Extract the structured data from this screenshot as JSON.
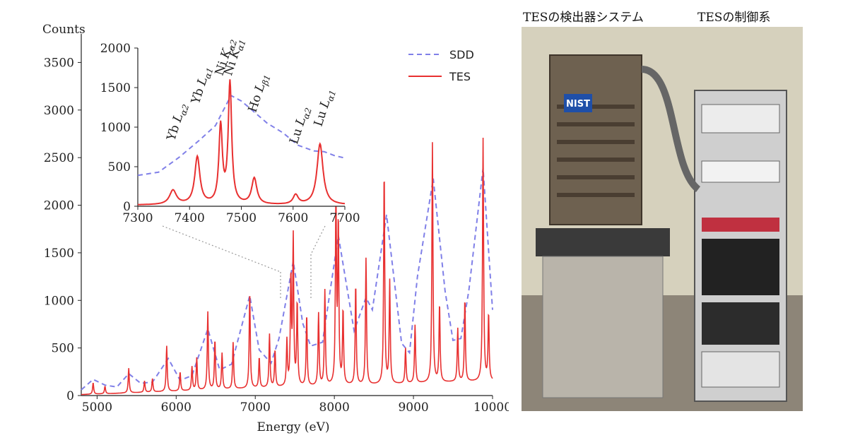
{
  "chart_data": [
    {
      "type": "line",
      "ylabel": "Counts",
      "xlabel": "Energy (eV)",
      "xlim": [
        4800,
        10000
      ],
      "ylim": [
        0,
        3800
      ],
      "x_ticks": [
        5000,
        6000,
        7000,
        8000,
        9000,
        10000
      ],
      "y_ticks": [
        0,
        500,
        1000,
        1500,
        2000,
        2500,
        3000,
        3500
      ],
      "legend_position": "top-right",
      "series": [
        {
          "name": "SDD",
          "style": "dashed",
          "color": "#8080e8",
          "points": [
            [
              4800,
              60
            ],
            [
              4950,
              170
            ],
            [
              5100,
              110
            ],
            [
              5250,
              90
            ],
            [
              5400,
              230
            ],
            [
              5550,
              130
            ],
            [
              5700,
              140
            ],
            [
              5900,
              390
            ],
            [
              6050,
              160
            ],
            [
              6200,
              210
            ],
            [
              6400,
              700
            ],
            [
              6550,
              270
            ],
            [
              6700,
              330
            ],
            [
              6930,
              1050
            ],
            [
              7050,
              480
            ],
            [
              7200,
              340
            ],
            [
              7300,
              600
            ],
            [
              7480,
              1410
            ],
            [
              7600,
              760
            ],
            [
              7700,
              520
            ],
            [
              7850,
              560
            ],
            [
              8050,
              1680
            ],
            [
              8250,
              680
            ],
            [
              8400,
              1030
            ],
            [
              8480,
              900
            ],
            [
              8660,
              1900
            ],
            [
              8850,
              550
            ],
            [
              8950,
              450
            ],
            [
              9050,
              1250
            ],
            [
              9250,
              2280
            ],
            [
              9400,
              1100
            ],
            [
              9500,
              580
            ],
            [
              9600,
              600
            ],
            [
              9700,
              1100
            ],
            [
              9880,
              2390
            ],
            [
              10000,
              900
            ]
          ]
        },
        {
          "name": "TES",
          "style": "solid",
          "color": "#e83030",
          "baseline": [
            [
              4800,
              10
            ],
            [
              5500,
              30
            ],
            [
              6500,
              60
            ],
            [
              7500,
              90
            ],
            [
              8500,
              110
            ],
            [
              9500,
              140
            ],
            [
              10000,
              150
            ]
          ],
          "peaks": [
            [
              4950,
              120
            ],
            [
              5100,
              80
            ],
            [
              5400,
              260
            ],
            [
              5600,
              120
            ],
            [
              5700,
              140
            ],
            [
              5880,
              480
            ],
            [
              6050,
              200
            ],
            [
              6200,
              250
            ],
            [
              6260,
              340
            ],
            [
              6400,
              820
            ],
            [
              6490,
              520
            ],
            [
              6580,
              380
            ],
            [
              6720,
              490
            ],
            [
              6930,
              1020
            ],
            [
              7050,
              320
            ],
            [
              7180,
              560
            ],
            [
              7250,
              390
            ],
            [
              7400,
              480
            ],
            [
              7450,
              1130
            ],
            [
              7480,
              1540
            ],
            [
              7530,
              870
            ],
            [
              7650,
              750
            ],
            [
              7800,
              760
            ],
            [
              7880,
              1000
            ],
            [
              8050,
              1680
            ],
            [
              8020,
              2000
            ],
            [
              8110,
              780
            ],
            [
              8270,
              1060
            ],
            [
              8400,
              1330
            ],
            [
              8630,
              2240
            ],
            [
              8700,
              1080
            ],
            [
              8900,
              370
            ],
            [
              9020,
              610
            ],
            [
              9240,
              2520
            ],
            [
              9330,
              820
            ],
            [
              9560,
              560
            ],
            [
              9650,
              870
            ],
            [
              9880,
              2550
            ],
            [
              9950,
              700
            ]
          ]
        }
      ]
    },
    {
      "type": "line",
      "role": "inset",
      "xlim": [
        7300,
        7700
      ],
      "ylim": [
        0,
        2000
      ],
      "x_ticks": [
        7300,
        7400,
        7500,
        7600,
        7700
      ],
      "y_ticks": [
        0,
        500,
        1000,
        1500,
        2000
      ],
      "series": [
        {
          "name": "SDD",
          "style": "dashed",
          "color": "#8080e8",
          "points": [
            [
              7300,
              390
            ],
            [
              7340,
              430
            ],
            [
              7380,
              620
            ],
            [
              7420,
              840
            ],
            [
              7450,
              1020
            ],
            [
              7480,
              1400
            ],
            [
              7500,
              1330
            ],
            [
              7520,
              1220
            ],
            [
              7550,
              1050
            ],
            [
              7580,
              930
            ],
            [
              7610,
              770
            ],
            [
              7640,
              700
            ],
            [
              7660,
              690
            ],
            [
              7680,
              640
            ],
            [
              7700,
              610
            ]
          ]
        },
        {
          "name": "TES",
          "style": "solid",
          "color": "#e83030",
          "baseline": 15,
          "peaks": [
            [
              7368,
              180,
              8
            ],
            [
              7415,
              600,
              6
            ],
            [
              7460,
              980,
              4
            ],
            [
              7478,
              1530,
              4
            ],
            [
              7525,
              330,
              6
            ],
            [
              7605,
              120,
              6
            ],
            [
              7652,
              770,
              7
            ]
          ]
        }
      ],
      "annotations": [
        {
          "element": "Yb",
          "line": "α2",
          "energy": 7368
        },
        {
          "element": "Yb",
          "line": "α1",
          "energy": 7415
        },
        {
          "element": "Ni",
          "line": "α2",
          "energy": 7461
        },
        {
          "element": "Ni",
          "line": "α1",
          "energy": 7478
        },
        {
          "element": "Ho",
          "line": "β1",
          "energy": 7525
        },
        {
          "element": "Lu",
          "line": "α2",
          "energy": 7605
        },
        {
          "element": "Lu",
          "line": "α1",
          "energy": 7652
        }
      ]
    }
  ],
  "labels": {
    "y_axis_title": "Counts",
    "x_axis_title": "Energy (eV)",
    "legend_sdd": "SDD",
    "legend_tes": "TES",
    "peak_letter_L": "L",
    "peak_letter_K": "K"
  },
  "photo": {
    "caption_left": "TESの検出器システム",
    "caption_right": "TESの制御系",
    "badge_text": "NIST"
  },
  "colors": {
    "sdd": "#8080e8",
    "tes": "#e83030",
    "axis": "#222222"
  }
}
